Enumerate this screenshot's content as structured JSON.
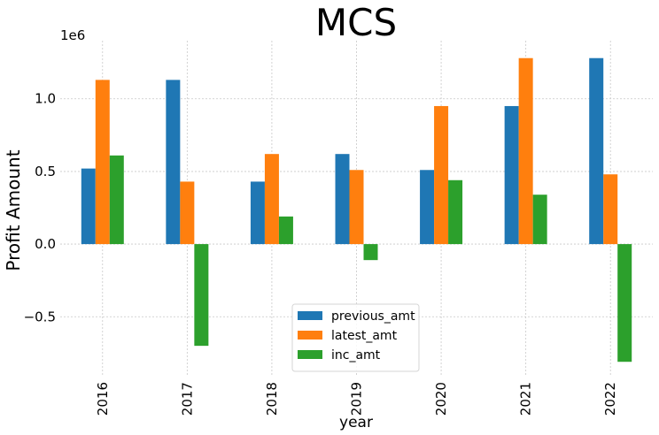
{
  "chart_data": {
    "type": "bar",
    "title": "MCS",
    "xlabel": "year",
    "ylabel": "Profit Amount",
    "offset_label": "1e6",
    "categories": [
      "2016",
      "2017",
      "2018",
      "2019",
      "2020",
      "2021",
      "2022"
    ],
    "ylim": [
      -0.9,
      1.4
    ],
    "yticks": [
      -0.5,
      0.0,
      0.5,
      1.0
    ],
    "ytick_labels": [
      "−0.5",
      "0.0",
      "0.5",
      "1.0"
    ],
    "series": [
      {
        "name": "previous_amt",
        "color": "#1f77b4",
        "values": [
          0.52,
          1.13,
          0.43,
          0.62,
          0.51,
          0.95,
          1.28
        ]
      },
      {
        "name": "latest_amt",
        "color": "#ff7f0e",
        "values": [
          1.13,
          0.43,
          0.62,
          0.51,
          0.95,
          1.28,
          0.48
        ]
      },
      {
        "name": "inc_amt",
        "color": "#2ca02c",
        "values": [
          0.61,
          -0.7,
          0.19,
          -0.11,
          0.44,
          0.34,
          -0.81
        ]
      }
    ],
    "grid": true,
    "legend_position": "lower-center"
  }
}
